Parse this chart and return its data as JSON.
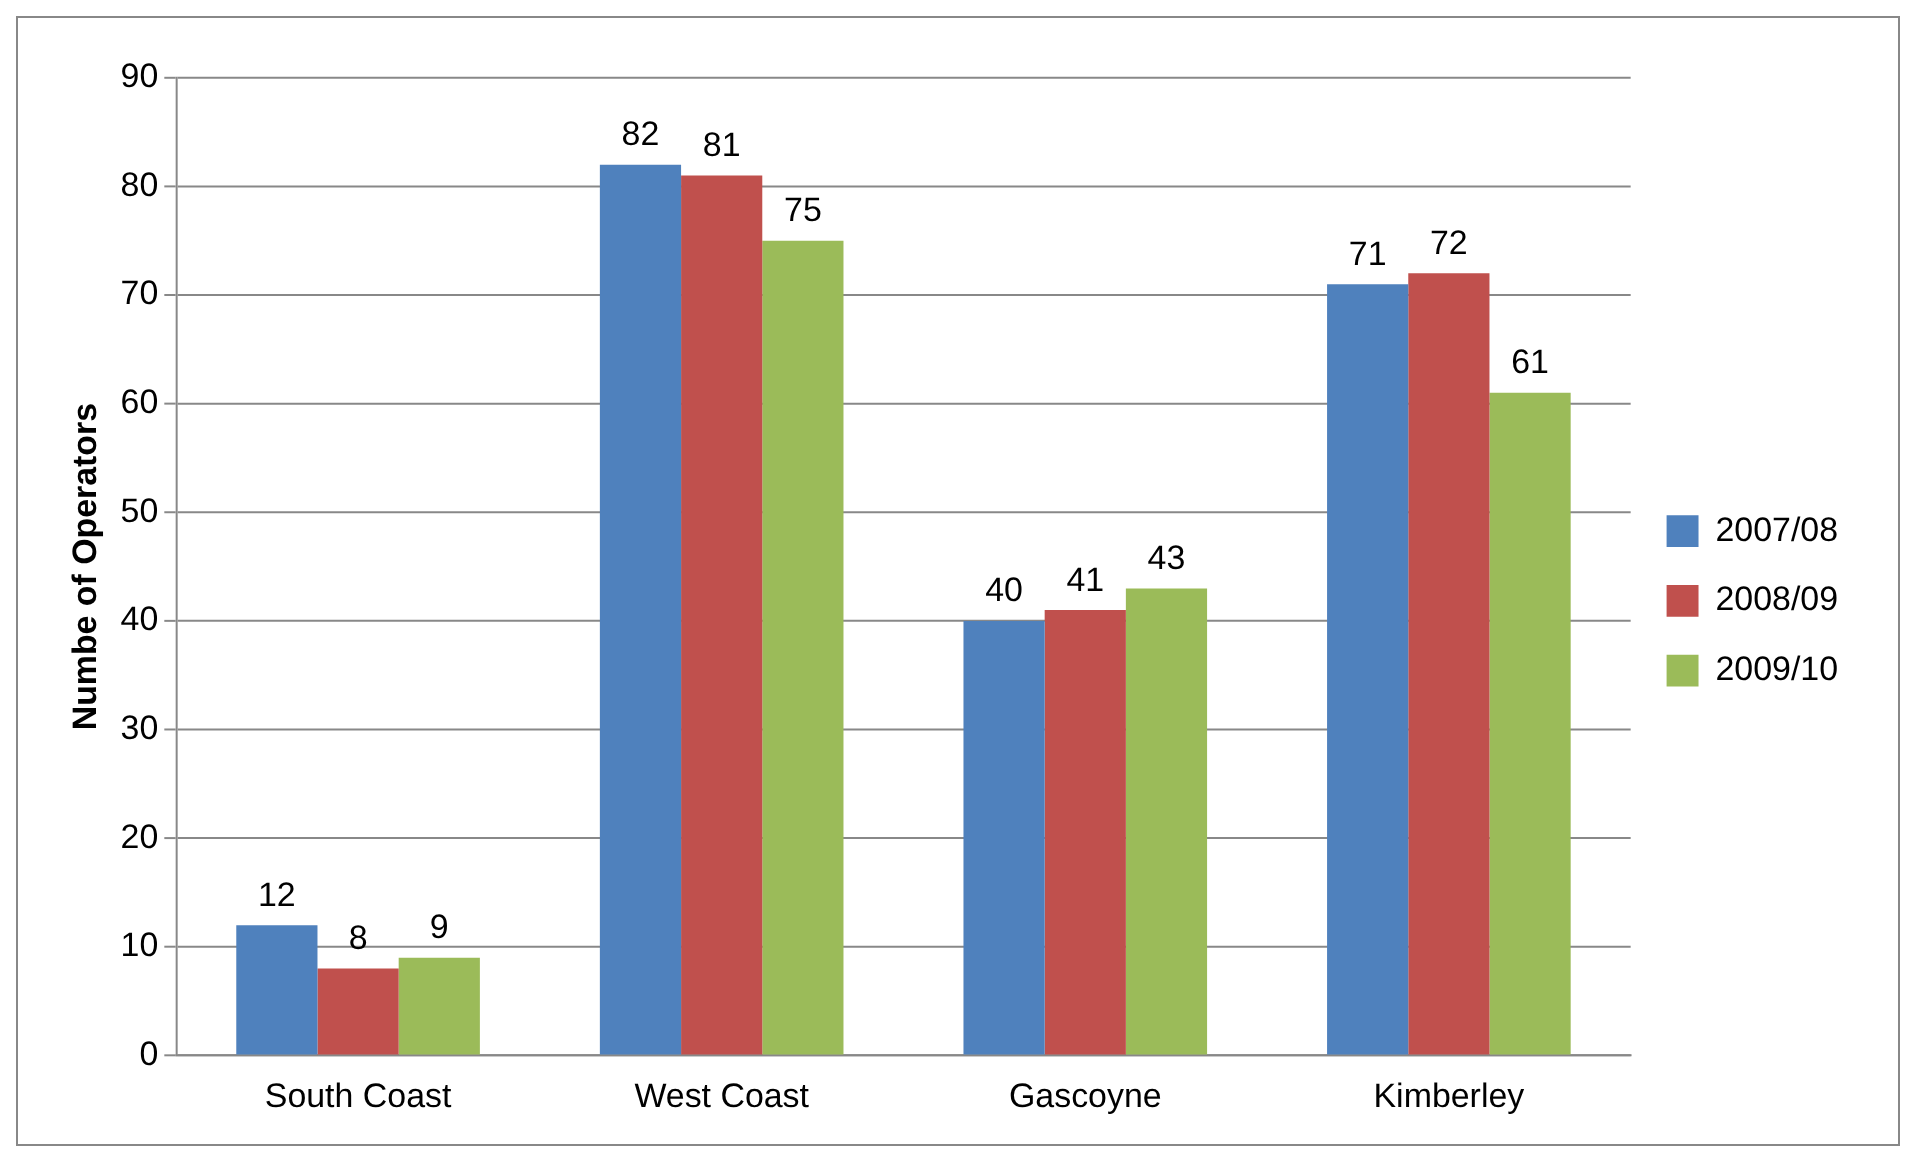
{
  "chart_data": {
    "type": "bar",
    "ylabel": "Numbe of Operators",
    "categories": [
      "South Coast",
      "West Coast",
      "Gascoyne",
      "Kimberley"
    ],
    "series": [
      {
        "name": "2007/08",
        "color": "#4f81bd",
        "values": [
          12,
          82,
          40,
          71
        ]
      },
      {
        "name": "2008/09",
        "color": "#c0504d",
        "values": [
          8,
          81,
          41,
          72
        ]
      },
      {
        "name": "2009/10",
        "color": "#9bbb59",
        "values": [
          9,
          75,
          43,
          61
        ]
      }
    ],
    "ylim": [
      0,
      90
    ],
    "yticks": [
      0,
      10,
      20,
      30,
      40,
      50,
      60,
      70,
      80,
      90
    ],
    "grid": "y",
    "legend": "right",
    "data_labels": true
  }
}
